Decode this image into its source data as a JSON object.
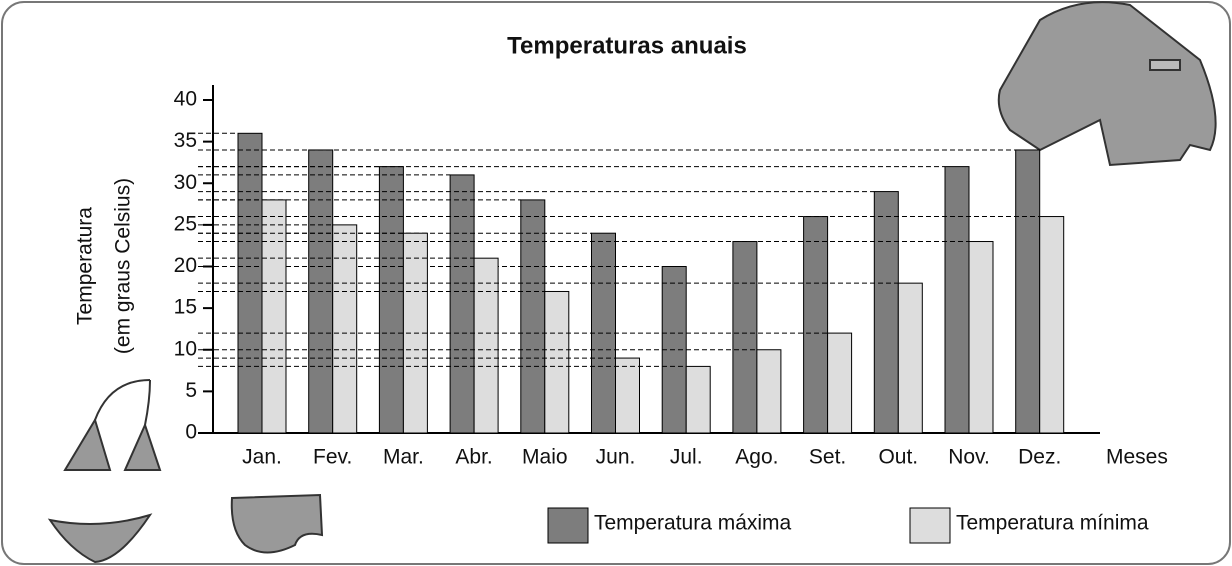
{
  "chart_data": {
    "type": "bar",
    "title": "Temperaturas anuais",
    "y_label": [
      "Temperatura",
      "(em graus Celsius)"
    ],
    "x_label": "Meses",
    "categories": [
      "Jan.",
      "Fev.",
      "Mar.",
      "Abr.",
      "Maio",
      "Jun.",
      "Jul.",
      "Ago.",
      "Set.",
      "Out.",
      "Nov.",
      "Dez."
    ],
    "series": [
      {
        "name": "Temperatura máxima",
        "color": "#7d7d7d",
        "values": [
          36,
          34,
          32,
          31,
          28,
          24,
          20,
          23,
          26,
          29,
          32,
          34
        ]
      },
      {
        "name": "Temperatura mínima",
        "color": "#dddddd",
        "values": [
          28,
          25,
          24,
          21,
          17,
          9,
          8,
          10,
          12,
          18,
          23,
          26
        ]
      }
    ],
    "ylim": [
      0,
      40
    ],
    "yticks": [
      0,
      5,
      10,
      15,
      20,
      25,
      30,
      35,
      40
    ]
  }
}
